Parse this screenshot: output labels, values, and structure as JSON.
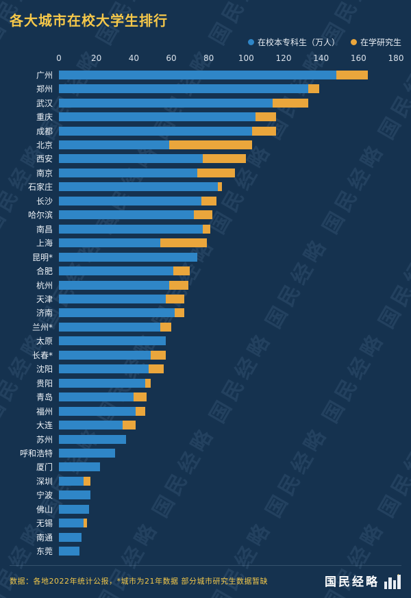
{
  "title": "各大城市在校大学生排行",
  "watermark": "国民经略",
  "legend": [
    {
      "label": "在校本专科生（万人）",
      "color": "#2f86c7"
    },
    {
      "label": "在学研究生",
      "color": "#eaa63c"
    }
  ],
  "footer": {
    "note": "数据：各地2022年统计公报，*城市为21年数据 部分城市研究生数据暂缺",
    "brand": "国民经略"
  },
  "colors": {
    "background": "#15324f",
    "title": "#f6c84a",
    "undergrad_bar": "#2f86c7",
    "grad_bar": "#eaa63c"
  },
  "chart_data": {
    "type": "bar",
    "orientation": "horizontal",
    "stacked": true,
    "title": "各大城市在校大学生排行",
    "xlabel": "万人",
    "xlim": [
      0,
      180
    ],
    "x_ticks": [
      0,
      20,
      40,
      60,
      80,
      100,
      120,
      140,
      160,
      180
    ],
    "legend_position": "top-right",
    "grid": false,
    "categories": [
      "广州",
      "郑州",
      "武汉",
      "重庆",
      "成都",
      "北京",
      "西安",
      "南京",
      "石家庄",
      "长沙",
      "哈尔滨",
      "南昌",
      "上海",
      "昆明*",
      "合肥",
      "杭州",
      "天津",
      "济南",
      "兰州*",
      "太原",
      "长春*",
      "沈阳",
      "贵阳",
      "青岛",
      "福州",
      "大连",
      "苏州",
      "呼和浩特",
      "厦门",
      "深圳",
      "宁波",
      "佛山",
      "无锡",
      "南通",
      "东莞"
    ],
    "series": [
      {
        "name": "在校本专科生（万人）",
        "color": "#2f86c7",
        "values": [
          148,
          133,
          114,
          105,
          103,
          59,
          77,
          74,
          85,
          76,
          72,
          77,
          54,
          74,
          61,
          59,
          57,
          62,
          54,
          57,
          49,
          48,
          46,
          40,
          41,
          34,
          36,
          30,
          22,
          13,
          17,
          16,
          13,
          12,
          11
        ]
      },
      {
        "name": "在学研究生",
        "color": "#eaa63c",
        "values": [
          17,
          6,
          19,
          11,
          13,
          44,
          23,
          20,
          2,
          8,
          10,
          4,
          25,
          0,
          9,
          10,
          10,
          5,
          6,
          0,
          8,
          8,
          3,
          7,
          5,
          7,
          0,
          0,
          0,
          4,
          0,
          0,
          2,
          0,
          0
        ]
      }
    ]
  }
}
